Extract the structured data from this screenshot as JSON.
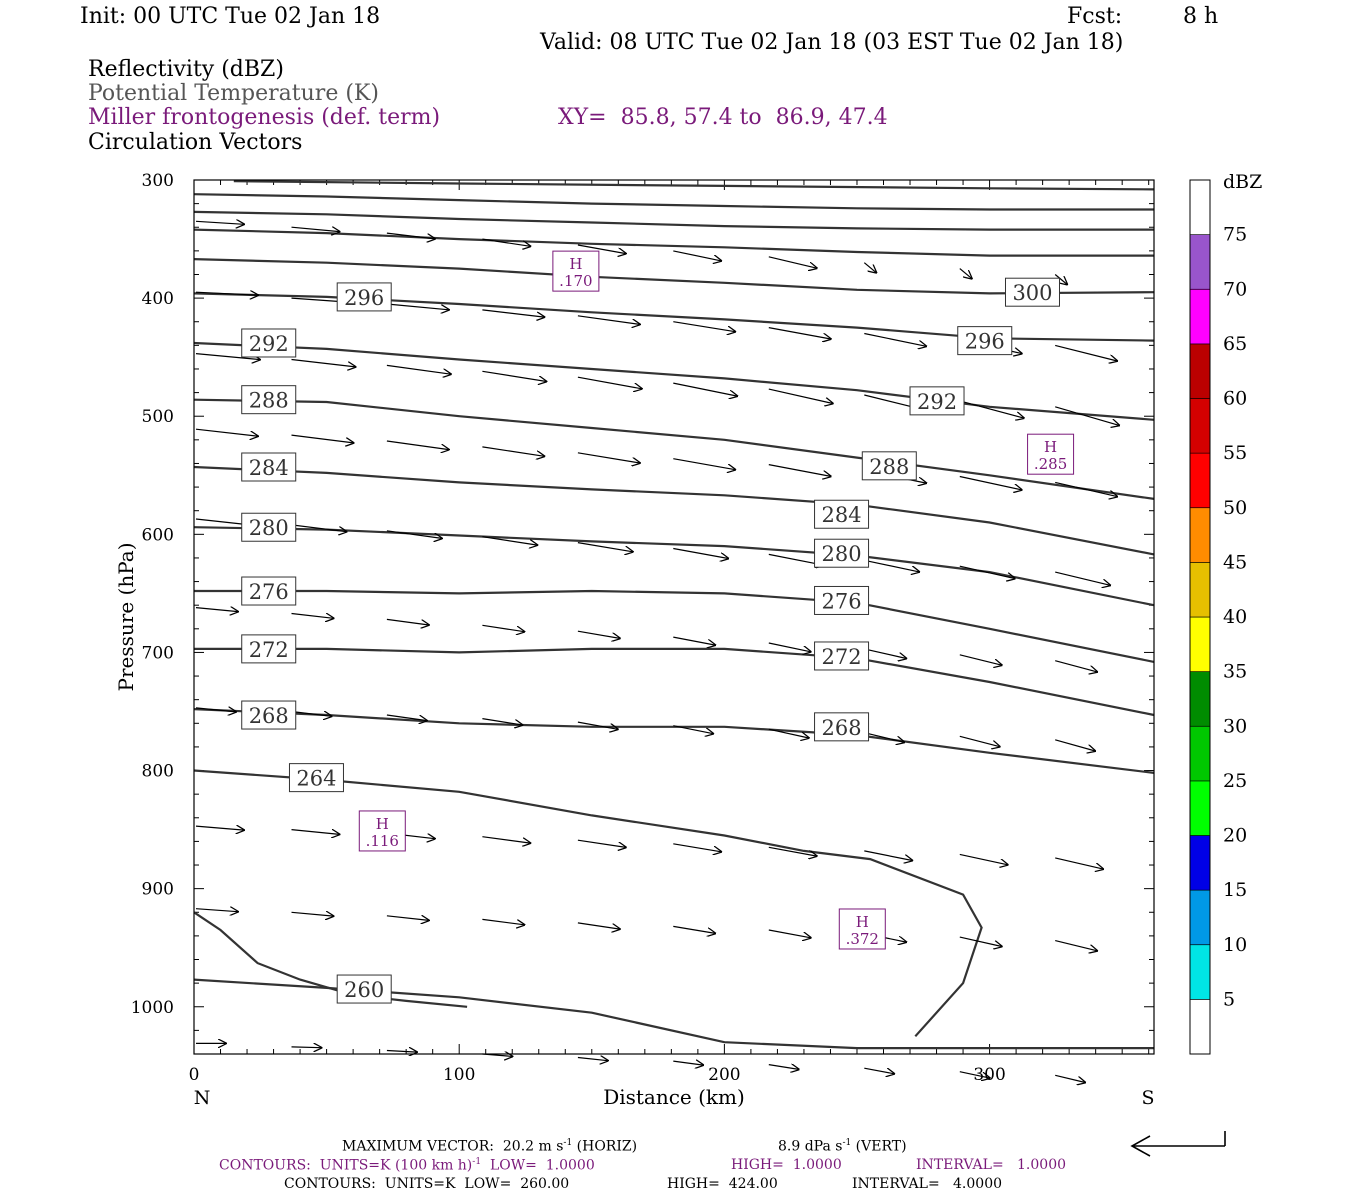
{
  "header": {
    "init": "Init: 00 UTC Tue 02 Jan 18",
    "fcst_label": "Fcst:",
    "fcst_value": "8 h",
    "valid": "Valid: 08 UTC Tue 02 Jan 18 (03 EST Tue 02 Jan 18)",
    "field1": "Reflectivity (dBZ)",
    "field2": "Potential Temperature (K)",
    "field3": "Miller frontogenesis (def. term)",
    "xy": "XY=  85.8, 57.4 to  86.9, 47.4",
    "field4": "Circulation Vectors"
  },
  "colors": {
    "purple": "#7a1a7a",
    "contour": "#333333"
  },
  "chart_data": {
    "type": "cross-section",
    "xlabel": "Distance (km)",
    "ylabel": "Pressure (hPa)",
    "xlim": [
      0,
      362
    ],
    "ylim": [
      1040,
      300
    ],
    "x_ticks": [
      "0",
      "100",
      "200",
      "300"
    ],
    "y_ticks": [
      "300",
      "400",
      "500",
      "600",
      "700",
      "800",
      "900",
      "1000"
    ],
    "left_end_label": "N",
    "right_end_label": "S",
    "theta_contours": [
      {
        "label": "260",
        "label_at": [
          54,
          985
        ],
        "points": [
          [
            0,
            977
          ],
          [
            50,
            984
          ],
          [
            100,
            992
          ],
          [
            150,
            1005
          ],
          [
            200,
            1030
          ],
          [
            250,
            1035
          ],
          [
            362,
            1035
          ]
        ]
      },
      {
        "label": "264",
        "label_at": [
          36,
          806
        ],
        "points": [
          [
            0,
            800
          ],
          [
            50,
            808
          ],
          [
            100,
            818
          ],
          [
            150,
            838
          ],
          [
            200,
            855
          ],
          [
            230,
            868
          ],
          [
            255,
            875
          ],
          [
            290,
            905
          ],
          [
            297,
            933
          ],
          [
            290,
            980
          ],
          [
            272,
            1025
          ]
        ]
      },
      {
        "label": "268",
        "label_at": [
          18,
          753
        ],
        "points": [
          [
            0,
            748
          ],
          [
            50,
            753
          ],
          [
            100,
            760
          ],
          [
            150,
            763
          ],
          [
            200,
            763
          ],
          [
            250,
            770
          ],
          [
            300,
            785
          ],
          [
            362,
            802
          ]
        ]
      },
      {
        "label": "268",
        "label_at": [
          234,
          763
        ],
        "points": []
      },
      {
        "label": "272",
        "label_at": [
          18,
          697
        ],
        "points": [
          [
            0,
            697
          ],
          [
            50,
            697
          ],
          [
            100,
            700
          ],
          [
            150,
            697
          ],
          [
            200,
            697
          ],
          [
            250,
            705
          ],
          [
            300,
            725
          ],
          [
            362,
            753
          ]
        ]
      },
      {
        "label": "272",
        "label_at": [
          234,
          703
        ],
        "points": []
      },
      {
        "label": "276",
        "label_at": [
          18,
          648
        ],
        "points": [
          [
            0,
            648
          ],
          [
            50,
            648
          ],
          [
            100,
            650
          ],
          [
            150,
            648
          ],
          [
            200,
            650
          ],
          [
            250,
            658
          ],
          [
            300,
            680
          ],
          [
            362,
            708
          ]
        ]
      },
      {
        "label": "276",
        "label_at": [
          234,
          656
        ],
        "points": []
      },
      {
        "label": "280",
        "label_at": [
          18,
          594
        ],
        "points": [
          [
            0,
            594
          ],
          [
            50,
            596
          ],
          [
            100,
            601
          ],
          [
            150,
            606
          ],
          [
            200,
            610
          ],
          [
            250,
            618
          ],
          [
            300,
            632
          ],
          [
            362,
            660
          ]
        ]
      },
      {
        "label": "280",
        "label_at": [
          234,
          616
        ],
        "points": []
      },
      {
        "label": "284",
        "label_at": [
          18,
          543
        ],
        "points": [
          [
            0,
            543
          ],
          [
            50,
            548
          ],
          [
            100,
            556
          ],
          [
            150,
            562
          ],
          [
            200,
            567
          ],
          [
            250,
            575
          ],
          [
            300,
            590
          ],
          [
            362,
            617
          ]
        ]
      },
      {
        "label": "284",
        "label_at": [
          234,
          583
        ],
        "points": []
      },
      {
        "label": "288",
        "label_at": [
          18,
          486
        ],
        "points": [
          [
            0,
            486
          ],
          [
            50,
            488
          ],
          [
            100,
            500
          ],
          [
            150,
            510
          ],
          [
            200,
            520
          ],
          [
            250,
            535
          ],
          [
            300,
            550
          ],
          [
            362,
            570
          ]
        ]
      },
      {
        "label": "288",
        "label_at": [
          252,
          542
        ],
        "points": []
      },
      {
        "label": "292",
        "label_at": [
          18,
          438
        ],
        "points": [
          [
            0,
            438
          ],
          [
            50,
            443
          ],
          [
            100,
            452
          ],
          [
            150,
            460
          ],
          [
            200,
            468
          ],
          [
            250,
            478
          ],
          [
            300,
            492
          ],
          [
            362,
            503
          ]
        ]
      },
      {
        "label": "292",
        "label_at": [
          270,
          487
        ],
        "points": []
      },
      {
        "label": "296",
        "label_at": [
          54,
          399
        ],
        "points": [
          [
            0,
            396
          ],
          [
            50,
            399
          ],
          [
            100,
            405
          ],
          [
            150,
            412
          ],
          [
            200,
            418
          ],
          [
            250,
            425
          ],
          [
            300,
            434
          ],
          [
            362,
            436
          ]
        ]
      },
      {
        "label": "296",
        "label_at": [
          288,
          436
        ],
        "points": []
      },
      {
        "label": "300",
        "label_at": [
          306,
          395
        ],
        "points": [
          [
            0,
            367
          ],
          [
            50,
            370
          ],
          [
            100,
            375
          ],
          [
            150,
            382
          ],
          [
            200,
            387
          ],
          [
            250,
            393
          ],
          [
            300,
            396
          ],
          [
            362,
            395
          ]
        ]
      },
      {
        "label": null,
        "label_at": null,
        "points": [
          [
            0,
            342
          ],
          [
            50,
            345
          ],
          [
            100,
            350
          ],
          [
            150,
            354
          ],
          [
            200,
            357
          ],
          [
            250,
            361
          ],
          [
            300,
            364
          ],
          [
            362,
            364
          ]
        ]
      },
      {
        "label": null,
        "label_at": null,
        "points": [
          [
            0,
            327
          ],
          [
            50,
            329
          ],
          [
            100,
            333
          ],
          [
            150,
            336
          ],
          [
            200,
            339
          ],
          [
            250,
            341
          ],
          [
            300,
            342
          ],
          [
            362,
            342
          ]
        ]
      },
      {
        "label": null,
        "label_at": null,
        "points": [
          [
            0,
            312
          ],
          [
            50,
            314
          ],
          [
            100,
            317
          ],
          [
            150,
            320
          ],
          [
            200,
            322
          ],
          [
            250,
            324
          ],
          [
            300,
            325
          ],
          [
            362,
            325
          ]
        ]
      },
      {
        "label": null,
        "label_at": null,
        "points": [
          [
            15,
            301
          ],
          [
            100,
            303
          ],
          [
            200,
            305
          ],
          [
            300,
            307
          ],
          [
            362,
            308
          ]
        ]
      },
      {
        "label": null,
        "label_at": null,
        "points": [
          [
            0,
            920
          ],
          [
            10,
            935
          ],
          [
            24,
            963
          ],
          [
            40,
            977
          ],
          [
            60,
            990
          ],
          [
            80,
            995
          ],
          [
            103,
            1000
          ]
        ]
      }
    ],
    "fronto_maxima": [
      {
        "label": "H",
        "value": ".170",
        "at": [
          144,
          378
        ]
      },
      {
        "label": "H",
        "value": ".285",
        "at": [
          323,
          533
        ]
      },
      {
        "label": "H",
        "value": ".116",
        "at": [
          71,
          852
        ]
      },
      {
        "label": "H",
        "value": ".372",
        "at": [
          252,
          935
        ]
      }
    ],
    "contour_units": "K",
    "colorbar": {
      "title": "dBZ",
      "levels": [
        "5",
        "10",
        "15",
        "20",
        "25",
        "30",
        "35",
        "40",
        "45",
        "50",
        "55",
        "60",
        "65",
        "70",
        "75"
      ],
      "colors": [
        "#ffffff",
        "#00e5e5",
        "#0099e6",
        "#0000e6",
        "#00ff00",
        "#00c800",
        "#008c00",
        "#ffff00",
        "#e6c000",
        "#ff8c00",
        "#ff0000",
        "#d40000",
        "#bb0000",
        "#ff00ff",
        "#9955cc",
        "#ffffff"
      ]
    }
  },
  "footer": {
    "max_vector_a": "MAXIMUM VECTOR:  20.2 m s",
    "max_vector_b": "-1",
    "max_vector_c": " (HORIZ)",
    "max_vert_a": "8.9 dPa s",
    "max_vert_b": "-1",
    "max_vert_c": " (VERT)",
    "contours1_a": "CONTOURS:  UNITS=K (100 km h)",
    "contours1_b": "-1",
    "contours1_c": "  LOW=  1.0000",
    "contours1_high": "HIGH=  1.0000",
    "contours1_int": "INTERVAL=   1.0000",
    "contours2_a": "CONTOURS:  UNITS=K  LOW=  260.00",
    "contours2_high": "HIGH=  424.00",
    "contours2_int": "INTERVAL=   4.0000"
  }
}
